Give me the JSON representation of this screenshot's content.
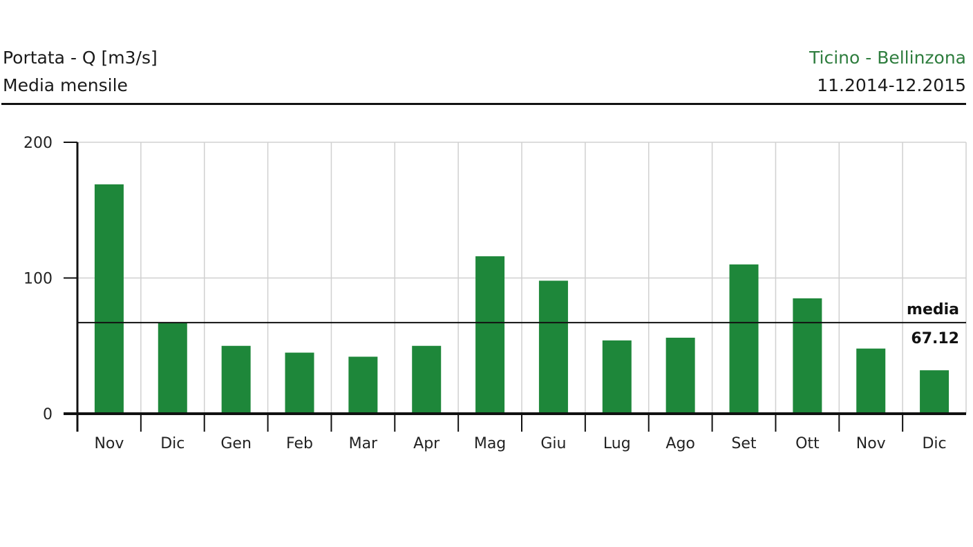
{
  "header": {
    "title": "Portata - Q [m3/s]",
    "subtitle": "Media mensile",
    "station": "Ticino - Bellinzona",
    "period": "11.2014-12.2015"
  },
  "colors": {
    "bar": "#1e873a",
    "grid": "#d0d0d0",
    "axis": "#111111",
    "station_text": "#2e7d3e"
  },
  "chart_data": {
    "type": "bar",
    "categories": [
      "Nov",
      "Dic",
      "Gen",
      "Feb",
      "Mar",
      "Apr",
      "Mag",
      "Giu",
      "Lug",
      "Ago",
      "Set",
      "Ott",
      "Nov",
      "Dic"
    ],
    "values": [
      169,
      67,
      50,
      45,
      42,
      50,
      116,
      98,
      54,
      56,
      110,
      85,
      48,
      32
    ],
    "ylim": [
      0,
      200
    ],
    "yticks": [
      "0",
      "100",
      "200"
    ],
    "grid": true,
    "mean": {
      "label": "media",
      "value": 67.12,
      "value_text": "67.12"
    }
  }
}
